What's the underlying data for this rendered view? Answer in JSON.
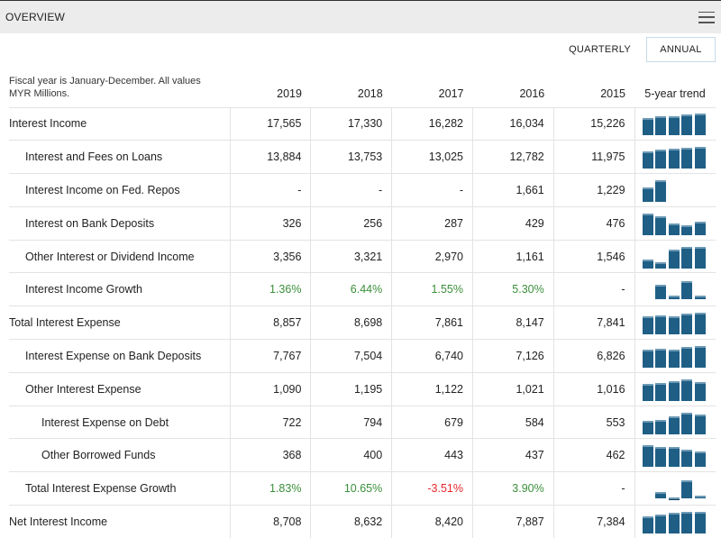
{
  "header": {
    "title": "OVERVIEW",
    "menu_icon": "hamburger-menu-icon"
  },
  "tabs": [
    {
      "label": "QUARTERLY",
      "active": false
    },
    {
      "label": "ANNUAL",
      "active": true
    }
  ],
  "table": {
    "note": "Fiscal year is January-December. All values MYR Millions.",
    "columns": [
      "2019",
      "2018",
      "2017",
      "2016",
      "2015"
    ],
    "trend_header": "5-year trend",
    "bar_color": "#1f5f86",
    "rows": [
      {
        "label": "Interest Income",
        "level": 0,
        "values": [
          "17,565",
          "17,330",
          "16,282",
          "16,034",
          "15,226"
        ],
        "trend": [
          15226,
          16034,
          16282,
          17330,
          17565
        ]
      },
      {
        "label": "Interest and Fees on Loans",
        "level": 1,
        "values": [
          "13,884",
          "13,753",
          "13,025",
          "12,782",
          "11,975"
        ],
        "trend": [
          11975,
          12782,
          13025,
          13753,
          13884
        ]
      },
      {
        "label": "Interest Income on Fed. Repos",
        "level": 1,
        "values": [
          "-",
          "-",
          "-",
          "1,661",
          "1,229"
        ],
        "trend": [
          1229,
          1661,
          null,
          null,
          null
        ]
      },
      {
        "label": "Interest on Bank Deposits",
        "level": 1,
        "values": [
          "326",
          "256",
          "287",
          "429",
          "476"
        ],
        "trend": [
          476,
          429,
          287,
          256,
          326
        ]
      },
      {
        "label": "Other Interest or Dividend Income",
        "level": 1,
        "values": [
          "3,356",
          "3,321",
          "2,970",
          "1,161",
          "1,546"
        ],
        "trend": [
          1546,
          1161,
          2970,
          3321,
          3356
        ]
      },
      {
        "label": "Interest Income Growth",
        "level": 1,
        "growth": true,
        "values": [
          "1.36%",
          "6.44%",
          "1.55%",
          "5.30%",
          "-"
        ],
        "trend": [
          null,
          5.3,
          1.55,
          6.44,
          1.36
        ]
      },
      {
        "label": "Total Interest Expense",
        "level": 0,
        "values": [
          "8,857",
          "8,698",
          "7,861",
          "8,147",
          "7,841"
        ],
        "trend": [
          7841,
          8147,
          7861,
          8698,
          8857
        ]
      },
      {
        "label": "Interest Expense on Bank Deposits",
        "level": 1,
        "values": [
          "7,767",
          "7,504",
          "6,740",
          "7,126",
          "6,826"
        ],
        "trend": [
          6826,
          7126,
          6740,
          7504,
          7767
        ]
      },
      {
        "label": "Other Interest Expense",
        "level": 1,
        "values": [
          "1,090",
          "1,195",
          "1,122",
          "1,021",
          "1,016"
        ],
        "trend": [
          1016,
          1021,
          1122,
          1195,
          1090
        ]
      },
      {
        "label": "Interest Expense on Debt",
        "level": 2,
        "values": [
          "722",
          "794",
          "679",
          "584",
          "553"
        ],
        "trend": [
          553,
          584,
          679,
          794,
          722
        ]
      },
      {
        "label": "Other Borrowed Funds",
        "level": 2,
        "values": [
          "368",
          "400",
          "443",
          "437",
          "462"
        ],
        "trend": [
          462,
          437,
          443,
          400,
          368
        ]
      },
      {
        "label": "Total Interest Expense Growth",
        "level": 1,
        "growth": true,
        "values": [
          "1.83%",
          "10.65%",
          "-3.51%",
          "3.90%",
          "-"
        ],
        "trend": [
          null,
          3.9,
          -3.51,
          10.65,
          1.83
        ]
      },
      {
        "label": "Net Interest Income",
        "level": 0,
        "values": [
          "8,708",
          "8,632",
          "8,420",
          "7,887",
          "7,384"
        ],
        "trend": [
          7384,
          7887,
          8420,
          8632,
          8708
        ]
      }
    ]
  }
}
